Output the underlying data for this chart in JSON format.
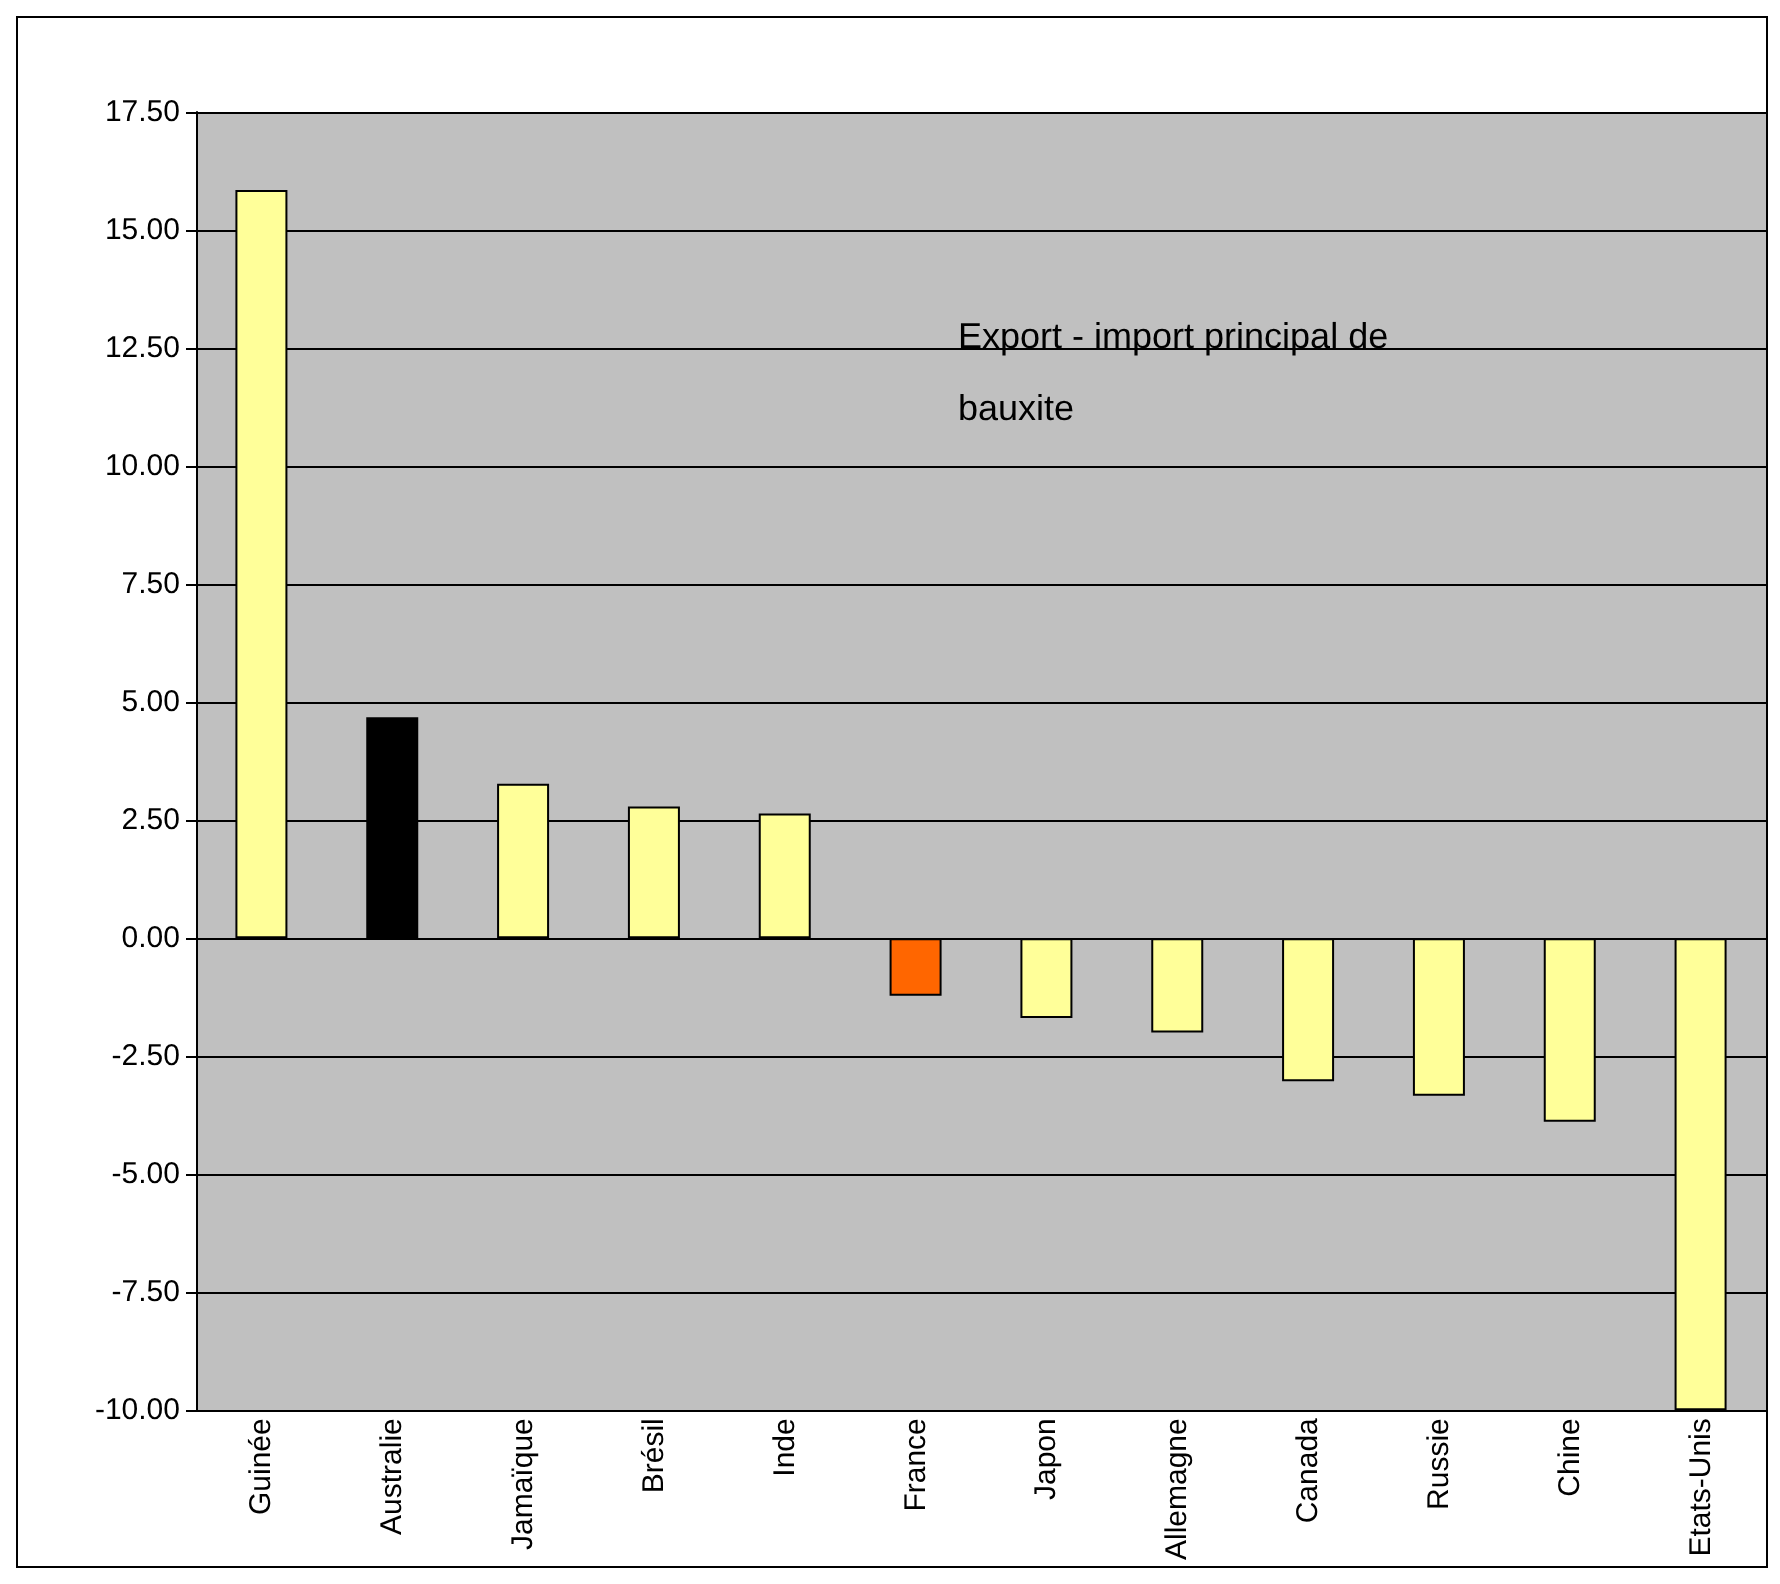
{
  "chart_data": {
    "type": "bar",
    "title": "Export - import principal de bauxite",
    "categories": [
      "Guinée",
      "Australie",
      "Jamaïque",
      "Brésil",
      "Inde",
      "France",
      "Japon",
      "Allemagne",
      "Canada",
      "Russie",
      "Chine",
      "Etats-Unis"
    ],
    "values": [
      15.85,
      4.68,
      3.27,
      2.79,
      2.64,
      -1.22,
      -1.69,
      -2.0,
      -3.03,
      -3.34,
      -3.89,
      -10.0
    ],
    "colors": [
      "#ffff99",
      "#000000",
      "#ffff99",
      "#ffff99",
      "#ffff99",
      "#ff6600",
      "#ffff99",
      "#ffff99",
      "#ffff99",
      "#ffff99",
      "#ffff99",
      "#ffff99"
    ],
    "ylim": [
      -10,
      17.5
    ],
    "yticks": [
      {
        "value": -10,
        "label": "-10.00"
      },
      {
        "value": -7.5,
        "label": "-7.50"
      },
      {
        "value": -5,
        "label": "-5.00"
      },
      {
        "value": -2.5,
        "label": "-2.50"
      },
      {
        "value": 0,
        "label": "0.00"
      },
      {
        "value": 2.5,
        "label": "2.50"
      },
      {
        "value": 5,
        "label": "5.00"
      },
      {
        "value": 7.5,
        "label": "7.50"
      },
      {
        "value": 10,
        "label": "10.00"
      },
      {
        "value": 12.5,
        "label": "12.50"
      },
      {
        "value": 15,
        "label": "15.00"
      },
      {
        "value": 17.5,
        "label": "17.50"
      }
    ],
    "grid": true
  }
}
